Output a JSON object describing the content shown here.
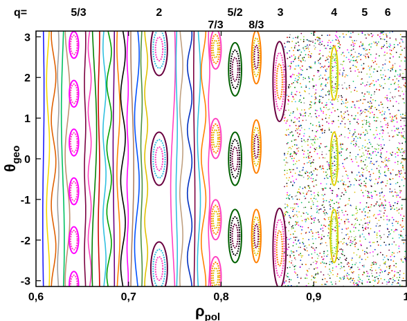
{
  "chart_data": {
    "type": "scatter",
    "title": "",
    "xlabel": {
      "main": "ρ",
      "sub": "pol"
    },
    "ylabel": {
      "main": "θ",
      "sub": "geo"
    },
    "xlim": [
      0.6,
      1.0
    ],
    "ylim": [
      -3.14159,
      3.14159
    ],
    "xticks": [
      {
        "value": 0.6,
        "label": "0,6"
      },
      {
        "value": 0.7,
        "label": "0,7"
      },
      {
        "value": 0.8,
        "label": "0,8"
      },
      {
        "value": 0.9,
        "label": "0,9"
      },
      {
        "value": 1.0,
        "label": "1"
      }
    ],
    "yticks": [
      {
        "value": 3,
        "label": "3"
      },
      {
        "value": 2,
        "label": "2"
      },
      {
        "value": 1,
        "label": "1"
      },
      {
        "value": 0,
        "label": "0"
      },
      {
        "value": -1,
        "label": "-1"
      },
      {
        "value": -2,
        "label": "-2"
      },
      {
        "value": -3,
        "label": "-3"
      }
    ],
    "q_prefix": "q=",
    "q_labels": [
      {
        "label": "5/3",
        "x": 0.646,
        "row": 0
      },
      {
        "label": "2",
        "x": 0.733,
        "row": 0
      },
      {
        "label": "5/2",
        "x": 0.815,
        "row": 0
      },
      {
        "label": "3",
        "x": 0.864,
        "row": 0
      },
      {
        "label": "4",
        "x": 0.922,
        "row": 0
      },
      {
        "label": "5",
        "x": 0.955,
        "row": 0
      },
      {
        "label": "6",
        "x": 0.98,
        "row": 0
      },
      {
        "label": "7/3",
        "x": 0.794,
        "row": 1
      },
      {
        "label": "8/3",
        "x": 0.838,
        "row": 1
      }
    ],
    "flux_surfaces": {
      "x": [
        0.608,
        0.613,
        0.619,
        0.624,
        0.629,
        0.634,
        0.653,
        0.658,
        0.663,
        0.668,
        0.674,
        0.679,
        0.684,
        0.689,
        0.694,
        0.699,
        0.704,
        0.709,
        0.714,
        0.719,
        0.748,
        0.752,
        0.757,
        0.766,
        0.771,
        0.776,
        0.781,
        0.787
      ],
      "colors": [
        "#1a1aff",
        "#f5d800",
        "#e06000",
        "#a0a0a0",
        "#00c060",
        "#c09070",
        "#7a0040",
        "#ff40c0",
        "#008000",
        "#d00000",
        "#30c0e0",
        "#00a000",
        "#6a0080",
        "#ff8000",
        "#000000",
        "#ff00ff",
        "#b08060",
        "#0050ff",
        "#4a9040",
        "#e0c000",
        "#ff40c0",
        "#30c0e0",
        "#c0a080",
        "#0030c0",
        "#7a0040",
        "#30c0e0",
        "#ff8000",
        "#ff40c0"
      ]
    },
    "islands": [
      {
        "q": "5/3",
        "x": 0.641,
        "width": 0.005,
        "colors": [
          "#ff00ff",
          "#ff40c0"
        ],
        "theta": [
          2.8,
          1.6,
          0.4,
          -0.8,
          -2.0,
          -3.1
        ]
      },
      {
        "q": "2",
        "x": 0.733,
        "width": 0.009,
        "colors": [
          "#6a0040",
          "#30c0e0",
          "#ff40c0"
        ],
        "theta": [
          2.7,
          0.0,
          -2.7
        ]
      },
      {
        "q": "7/3",
        "x": 0.794,
        "width": 0.006,
        "colors": [
          "#ff40c0",
          "#ff8000",
          "#e0c000"
        ],
        "theta": [
          2.7,
          0.5,
          -1.5,
          -2.9
        ]
      },
      {
        "q": "5/2",
        "x": 0.815,
        "width": 0.007,
        "colors": [
          "#006000",
          "#000000",
          "#6a0040"
        ],
        "theta": [
          2.2,
          0.0,
          -1.9
        ]
      },
      {
        "q": "8/3",
        "x": 0.838,
        "width": 0.005,
        "colors": [
          "#ff8000",
          "#e0c000",
          "#7a0040"
        ],
        "theta": [
          2.5,
          0.3,
          -1.9
        ]
      },
      {
        "q": "3",
        "x": 0.863,
        "width": 0.007,
        "colors": [
          "#6a0040",
          "#ff40c0",
          "#ff8000"
        ],
        "theta": [
          1.9,
          -2.2
        ]
      },
      {
        "q": "4",
        "x": 0.922,
        "width": 0.004,
        "colors": [
          "#e0d000",
          "#a0e040"
        ],
        "theta": [
          2.1,
          0.0,
          -1.9
        ]
      }
    ],
    "chaotic_region": {
      "x_start": 0.868,
      "x_end": 1.0
    },
    "dot_colors": [
      "#ff00ff",
      "#000000",
      "#0030c0",
      "#e0c000",
      "#ff8000",
      "#008000",
      "#7a0040",
      "#30c0e0",
      "#a0a0a0",
      "#d00000",
      "#00c060",
      "#a0e040"
    ]
  }
}
